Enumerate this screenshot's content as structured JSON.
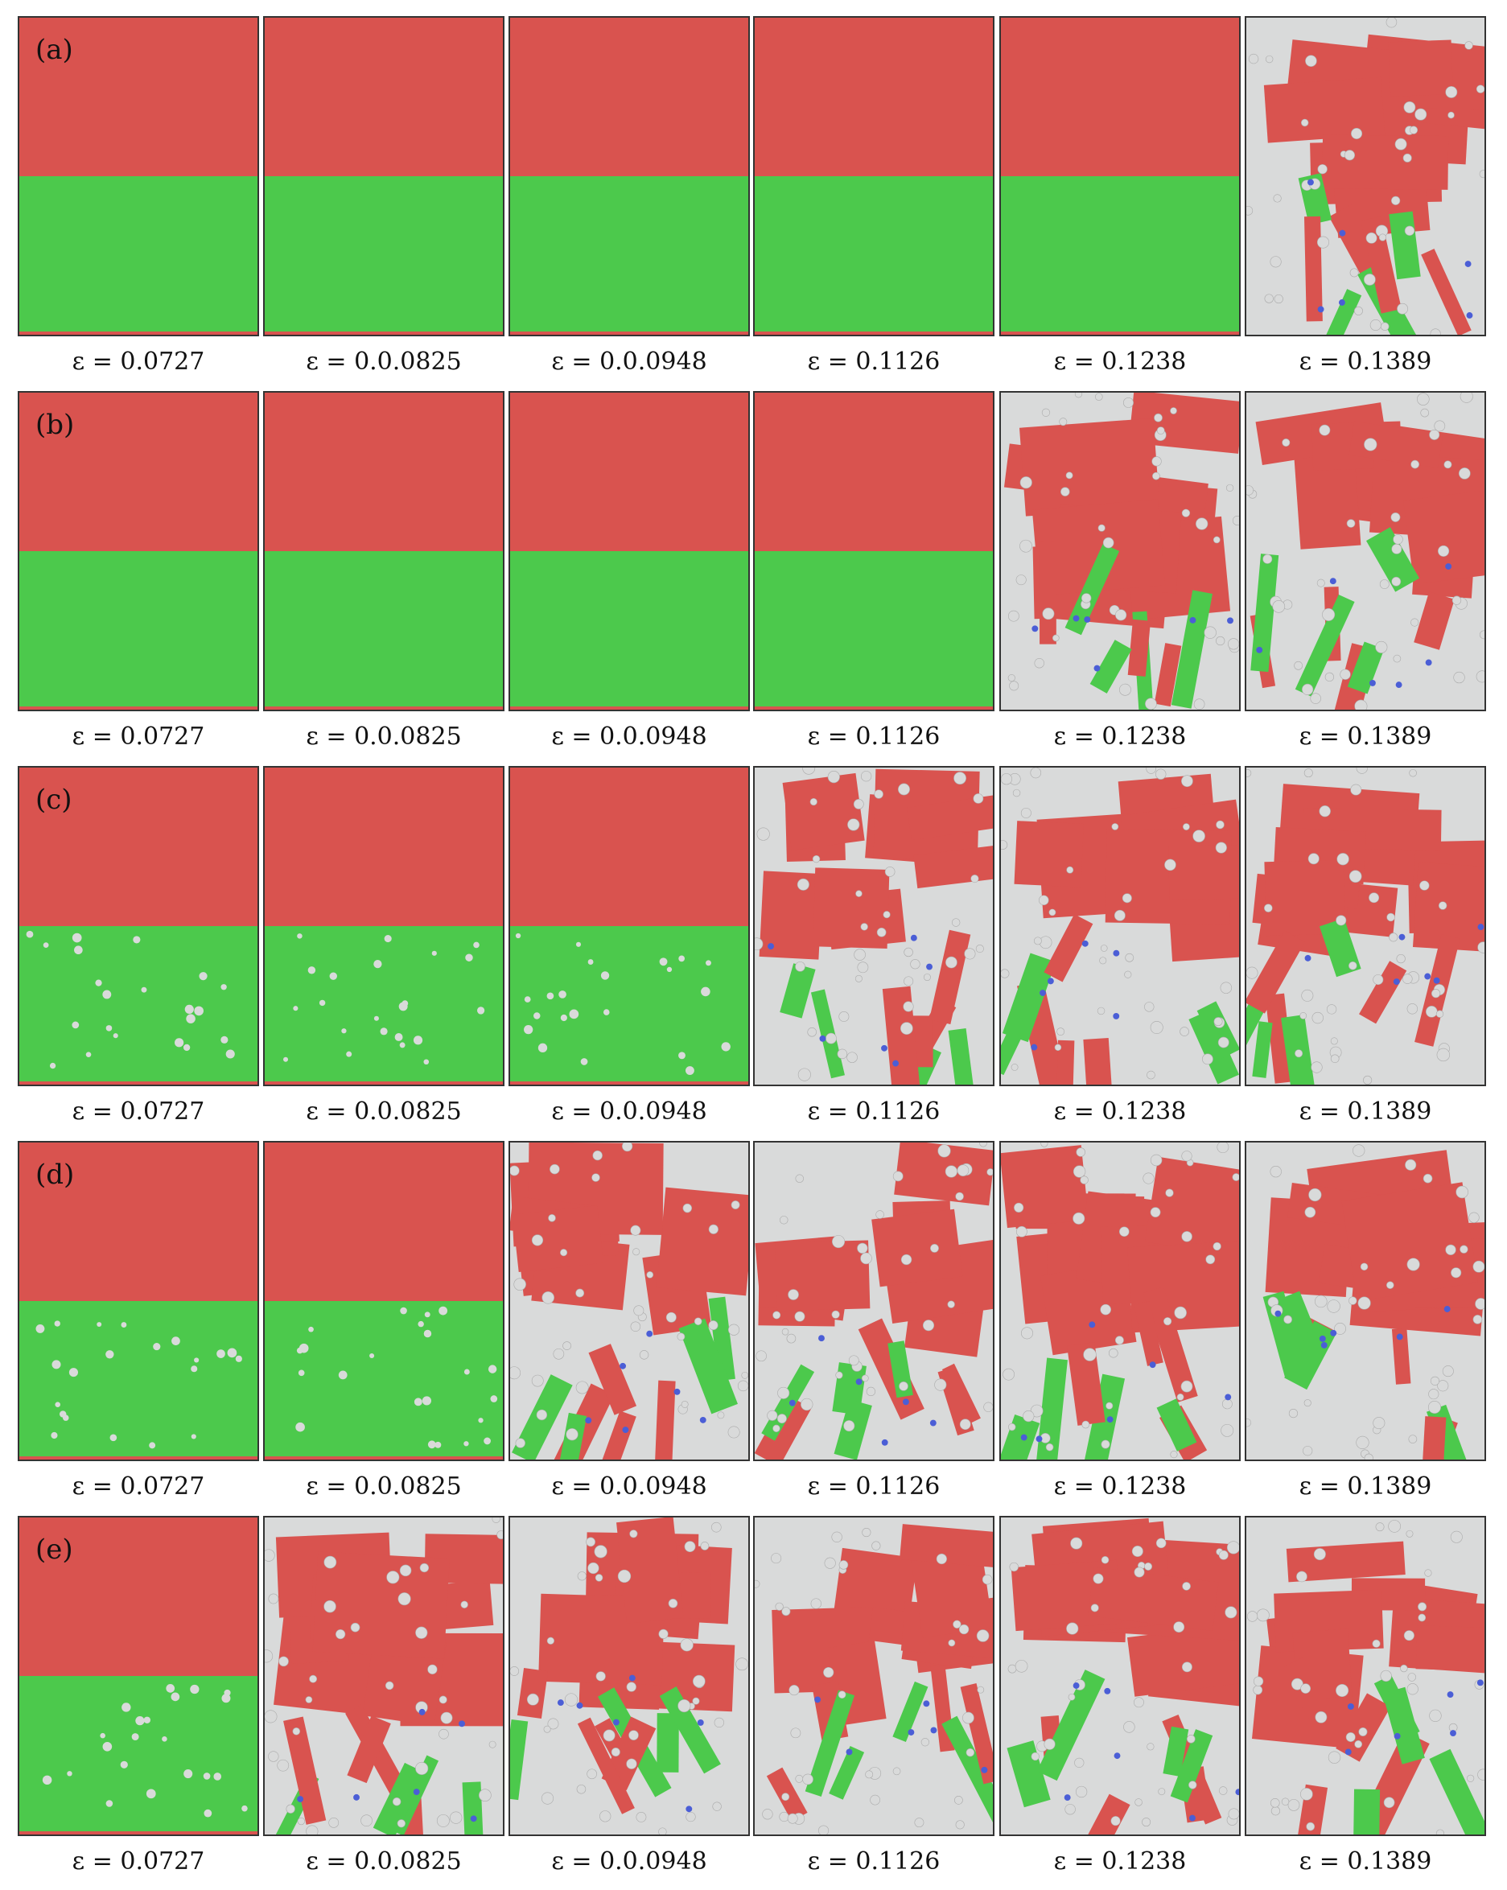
{
  "figure": {
    "colors": {
      "fcc": "#d9534f",
      "hcp": "#4cc94c",
      "other": "#d9dada",
      "bcc": "#4b5ed6",
      "border": "#333333"
    },
    "rows": [
      {
        "label": "(a)",
        "strains": [
          "ε = 0.0727",
          "ε = 0.0.0825",
          "ε = 0.0.0948",
          "ε = 0.1126",
          "ε = 0.1238",
          "ε = 0.1389"
        ],
        "damage": [
          "intact",
          "intact",
          "intact",
          "intact",
          "intact",
          "heavy"
        ]
      },
      {
        "label": "(b)",
        "strains": [
          "ε = 0.0727",
          "ε = 0.0.0825",
          "ε = 0.0.0948",
          "ε = 0.1126",
          "ε = 0.1238",
          "ε = 0.1389"
        ],
        "damage": [
          "intact",
          "intact",
          "intact",
          "intact",
          "heavy",
          "heavy"
        ]
      },
      {
        "label": "(c)",
        "strains": [
          "ε = 0.0727",
          "ε = 0.0.0825",
          "ε = 0.0.0948",
          "ε = 0.1126",
          "ε = 0.1238",
          "ε = 0.1389"
        ],
        "damage": [
          "light",
          "light",
          "light",
          "heavy",
          "heavy",
          "heavy"
        ]
      },
      {
        "label": "(d)",
        "strains": [
          "ε = 0.0727",
          "ε = 0.0.0825",
          "ε = 0.0.0948",
          "ε = 0.1126",
          "ε = 0.1238",
          "ε = 0.1389"
        ],
        "damage": [
          "light",
          "light",
          "heavy",
          "heavy",
          "heavy",
          "heavy"
        ]
      },
      {
        "label": "(e)",
        "strains": [
          "ε = 0.0727",
          "ε = 0.0.0825",
          "ε = 0.0.0948",
          "ε = 0.1126",
          "ε = 0.1238",
          "ε = 0.1389"
        ],
        "damage": [
          "light",
          "heavy",
          "heavy",
          "heavy",
          "heavy",
          "heavy"
        ]
      }
    ]
  }
}
